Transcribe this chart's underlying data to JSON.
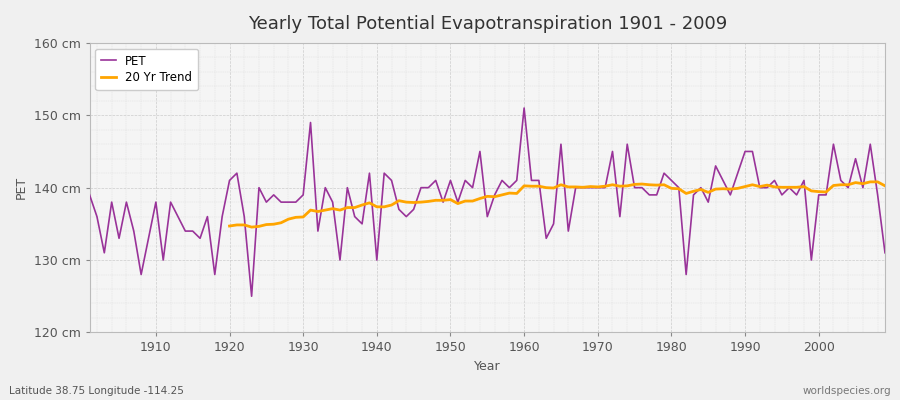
{
  "title": "Yearly Total Potential Evapotranspiration 1901 - 2009",
  "xlabel": "Year",
  "ylabel": "PET",
  "footnote_left": "Latitude 38.75 Longitude -114.25",
  "footnote_right": "worldspecies.org",
  "legend_pet": "PET",
  "legend_trend": "20 Yr Trend",
  "pet_color": "#993399",
  "trend_color": "#FFA500",
  "bg_color": "#F0F0F0",
  "plot_bg": "#F5F5F5",
  "grid_color": "#CCCCCC",
  "ylim_min": 120,
  "ylim_max": 160,
  "yticks": [
    120,
    130,
    140,
    150,
    160
  ],
  "ytick_labels": [
    "120 cm",
    "130 cm",
    "140 cm",
    "150 cm",
    "160 cm"
  ],
  "years": [
    1901,
    1902,
    1903,
    1904,
    1905,
    1906,
    1907,
    1908,
    1909,
    1910,
    1911,
    1912,
    1913,
    1914,
    1915,
    1916,
    1917,
    1918,
    1919,
    1920,
    1921,
    1922,
    1923,
    1924,
    1925,
    1926,
    1927,
    1928,
    1929,
    1930,
    1931,
    1932,
    1933,
    1934,
    1935,
    1936,
    1937,
    1938,
    1939,
    1940,
    1941,
    1942,
    1943,
    1944,
    1945,
    1946,
    1947,
    1948,
    1949,
    1950,
    1951,
    1952,
    1953,
    1954,
    1955,
    1956,
    1957,
    1958,
    1959,
    1960,
    1961,
    1962,
    1963,
    1964,
    1965,
    1966,
    1967,
    1968,
    1969,
    1970,
    1971,
    1972,
    1973,
    1974,
    1975,
    1976,
    1977,
    1978,
    1979,
    1980,
    1981,
    1982,
    1983,
    1984,
    1985,
    1986,
    1987,
    1988,
    1989,
    1990,
    1991,
    1992,
    1993,
    1994,
    1995,
    1996,
    1997,
    1998,
    1999,
    2000,
    2001,
    2002,
    2003,
    2004,
    2005,
    2006,
    2007,
    2008,
    2009
  ],
  "pet_values": [
    139,
    136,
    131,
    138,
    133,
    138,
    134,
    128,
    133,
    138,
    130,
    138,
    136,
    134,
    134,
    133,
    136,
    128,
    136,
    141,
    142,
    136,
    125,
    140,
    138,
    139,
    138,
    138,
    138,
    139,
    149,
    134,
    140,
    138,
    130,
    140,
    136,
    135,
    142,
    130,
    142,
    141,
    137,
    136,
    137,
    140,
    140,
    141,
    138,
    141,
    138,
    141,
    140,
    145,
    136,
    139,
    141,
    140,
    141,
    151,
    141,
    141,
    133,
    135,
    146,
    134,
    140,
    140,
    140,
    140,
    140,
    145,
    136,
    146,
    140,
    140,
    139,
    139,
    142,
    141,
    140,
    128,
    139,
    140,
    138,
    143,
    141,
    139,
    142,
    145,
    145,
    140,
    140,
    141,
    139,
    140,
    139,
    141,
    130,
    139,
    139,
    146,
    141,
    140,
    144,
    140,
    146,
    139,
    131
  ]
}
